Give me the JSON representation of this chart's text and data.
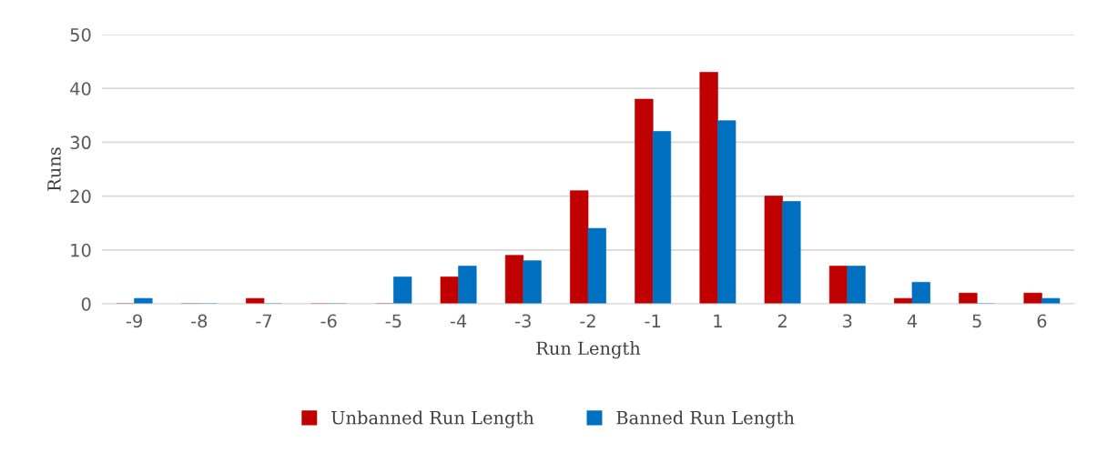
{
  "chart_data": {
    "type": "bar",
    "xlabel": "Run Length",
    "ylabel": "Runs",
    "categories": [
      "-9",
      "-8",
      "-7",
      "-6",
      "-5",
      "-4",
      "-3",
      "-2",
      "-1",
      "1",
      "2",
      "3",
      "4",
      "5",
      "6"
    ],
    "series": [
      {
        "name": "Unbanned Run Length",
        "color": "#c00000",
        "values": [
          0,
          0,
          1,
          0,
          0,
          5,
          9,
          21,
          38,
          43,
          20,
          7,
          1,
          2,
          2
        ]
      },
      {
        "name": "Banned Run Length",
        "color": "#0070c0",
        "values": [
          1,
          0,
          0,
          0,
          5,
          7,
          8,
          14,
          32,
          34,
          19,
          7,
          4,
          0,
          1
        ]
      }
    ],
    "ylim": [
      0,
      50
    ],
    "yticks": [
      0,
      10,
      20,
      30,
      40,
      50
    ],
    "grid": "y",
    "legend": "bottom"
  }
}
